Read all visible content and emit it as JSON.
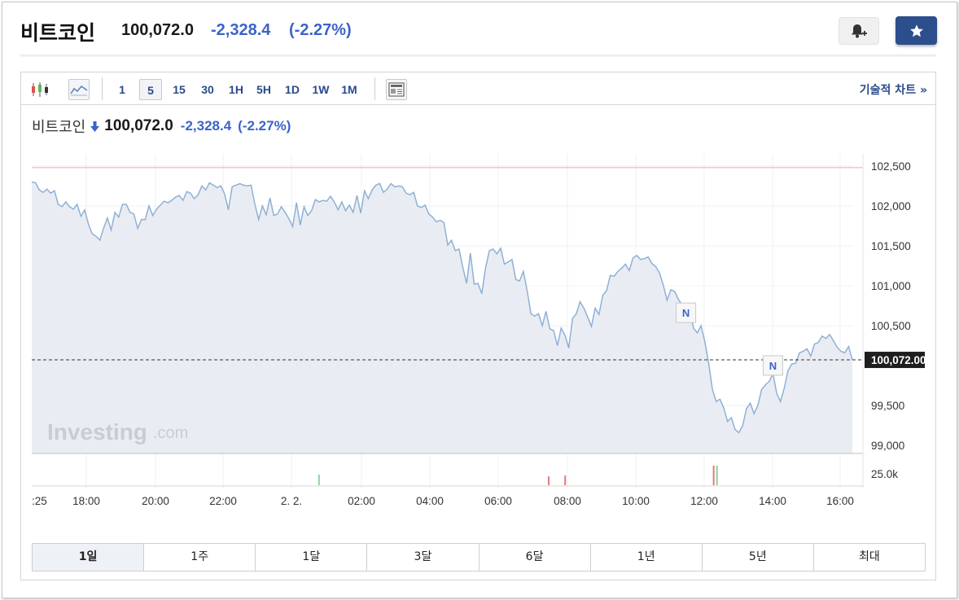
{
  "header": {
    "title": "비트코인",
    "price": "100,072.0",
    "change": "-2,328.4",
    "change_pct": "(-2.27%)",
    "alert_icon": "bell-plus-icon",
    "star_icon": "star-icon"
  },
  "toolbar": {
    "timeframes": [
      "1",
      "5",
      "15",
      "30",
      "1H",
      "5H",
      "1D",
      "1W",
      "1M"
    ],
    "active_timeframe": "5",
    "tech_chart_label": "기술적 차트 »"
  },
  "chart_head": {
    "name": "비트코인",
    "price": "100,072.0",
    "change": "-2,328.4",
    "change_pct": "(-2.27%)"
  },
  "watermark": {
    "brand": "Investing",
    "suffix": ".com"
  },
  "range_buttons": [
    "1일",
    "1주",
    "1달",
    "3달",
    "6달",
    "1년",
    "5년",
    "최대"
  ],
  "active_range": "1일",
  "colors": {
    "line": "#8fb0d6",
    "fill": "#e9edf3",
    "accent_blue": "#3c63c9",
    "ref_line": "#f0a8a8",
    "vol_up": "#8fd19e",
    "vol_down": "#e07a7a"
  },
  "chart_data": {
    "type": "area",
    "x_tick_labels": [
      ":25",
      "18:00",
      "20:00",
      "22:00",
      "2. 2.",
      "02:00",
      "04:00",
      "06:00",
      "08:00",
      "10:00",
      "12:00",
      "14:00",
      "16:00"
    ],
    "y_tick_labels": [
      "102,500",
      "102,000",
      "101,500",
      "101,000",
      "100,500",
      "99,500",
      "99,000"
    ],
    "ylim": [
      98900,
      102550
    ],
    "y_ticks": [
      102500,
      102000,
      101500,
      101000,
      100500,
      99500,
      99000
    ],
    "current_value": 100072,
    "current_label": "100,072.00",
    "reference_value": 102480,
    "volume_label": "25.0k",
    "values": [
      102300,
      102290,
      102200,
      102170,
      102210,
      102160,
      102190,
      102020,
      101990,
      102050,
      101990,
      101960,
      102020,
      101870,
      101950,
      101770,
      101650,
      101620,
      101570,
      101720,
      101850,
      101700,
      101920,
      101860,
      102020,
      102020,
      101920,
      101900,
      101720,
      101830,
      101830,
      102000,
      101880,
      101960,
      102010,
      102060,
      102040,
      102070,
      102110,
      102130,
      102070,
      102180,
      102160,
      102090,
      102140,
      102250,
      102200,
      102290,
      102260,
      102230,
      102250,
      102150,
      101950,
      102240,
      102260,
      102280,
      102260,
      102250,
      102260,
      102020,
      101830,
      102000,
      101890,
      102100,
      101880,
      101900,
      101990,
      101920,
      101840,
      101740,
      102040,
      101760,
      101990,
      101880,
      101940,
      102080,
      102050,
      102070,
      102060,
      102120,
      102050,
      101950,
      102050,
      101940,
      102010,
      101920,
      102130,
      101910,
      102190,
      102090,
      102200,
      102260,
      102280,
      102170,
      102210,
      102280,
      102240,
      102250,
      102240,
      102160,
      102140,
      102170,
      102000,
      101980,
      102010,
      101900,
      101860,
      101800,
      101820,
      101790,
      101510,
      101570,
      101440,
      101460,
      101230,
      101030,
      101410,
      101020,
      101030,
      100900,
      101220,
      101440,
      101460,
      101400,
      101470,
      101270,
      101300,
      101330,
      101080,
      101060,
      101180,
      100940,
      100650,
      100620,
      100650,
      100500,
      100680,
      100460,
      100440,
      100250,
      100470,
      100380,
      100220,
      100590,
      100650,
      100800,
      100720,
      100610,
      100490,
      100720,
      100640,
      100880,
      100940,
      101130,
      101120,
      101180,
      101220,
      101270,
      101190,
      101350,
      101380,
      101330,
      101340,
      101360,
      101280,
      101240,
      101160,
      101010,
      100820,
      100950,
      100930,
      100830,
      100760,
      100560,
      100690,
      100470,
      100410,
      100500,
      100300,
      100030,
      99700,
      99550,
      99580,
      99470,
      99300,
      99350,
      99200,
      99160,
      99250,
      99460,
      99530,
      99400,
      99500,
      99700,
      99760,
      99800,
      99900,
      99650,
      99550,
      99720,
      99940,
      100020,
      100030,
      100160,
      100180,
      100210,
      100120,
      100270,
      100290,
      100370,
      100340,
      100390,
      100310,
      100230,
      100180,
      100160,
      100240,
      100072
    ],
    "volume_markers": [
      {
        "x_frac": 0.35,
        "value": 0.55,
        "color": "up"
      },
      {
        "x_frac": 0.63,
        "value": 0.45,
        "color": "down"
      },
      {
        "x_frac": 0.65,
        "value": 0.5,
        "color": "down"
      },
      {
        "x_frac": 0.831,
        "value": 1.0,
        "color": "down"
      },
      {
        "x_frac": 0.835,
        "value": 1.0,
        "color": "up"
      }
    ],
    "news_markers": [
      {
        "label": "N",
        "index": 173
      },
      {
        "label": "N",
        "index": 196
      }
    ]
  }
}
